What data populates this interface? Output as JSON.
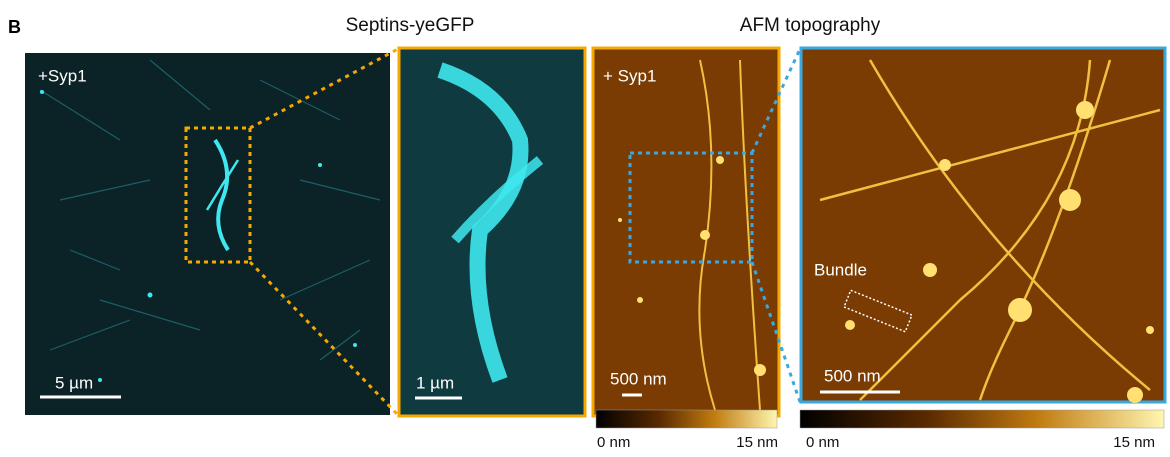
{
  "panel_label": "B",
  "titles": [
    "Septins-yeGFP",
    "AFM topography"
  ],
  "images": [
    {
      "label": "+Syp1",
      "scale_bar": "5 µm"
    },
    {
      "scale_bar": "1 µm"
    },
    {
      "label": "+ Syp1",
      "scale_bar": "500 nm"
    },
    {
      "scale_bar": "500 nm",
      "annotation": "Bundle"
    }
  ],
  "colorbars": [
    {
      "min_label": "0 nm",
      "max_label": "15 nm"
    },
    {
      "min_label": "0 nm",
      "max_label": "15 nm"
    }
  ]
}
